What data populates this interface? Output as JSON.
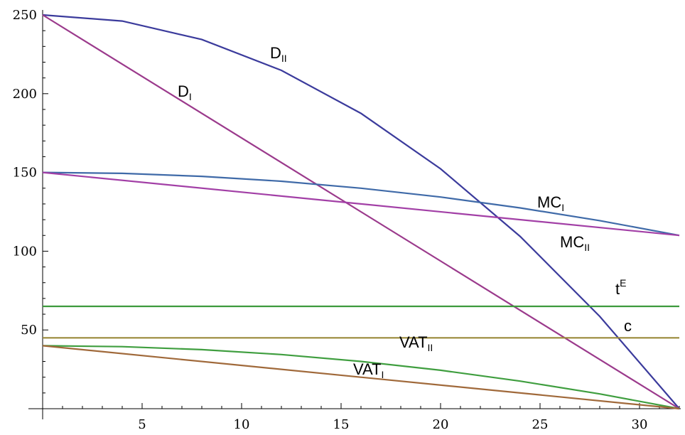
{
  "chart_data": {
    "type": "line",
    "title": "",
    "xlabel": "",
    "ylabel": "",
    "xlim": [
      0,
      32
    ],
    "ylim": [
      0,
      250
    ],
    "x_ticks": [
      5,
      10,
      15,
      20,
      25,
      30
    ],
    "y_ticks": [
      50,
      100,
      150,
      200,
      250
    ],
    "grid": false,
    "series": [
      {
        "id": "d2",
        "label_main": "D",
        "label_sub": "II",
        "label_sup": "",
        "color": "#3b3b9c",
        "x": [
          0,
          4,
          8,
          12,
          16,
          20,
          24,
          28,
          32
        ],
        "y": [
          250,
          246.1,
          234.4,
          214.8,
          187.5,
          152.3,
          109.4,
          58.6,
          0
        ]
      },
      {
        "id": "d1",
        "label_main": "D",
        "label_sub": "I",
        "label_sup": "",
        "color": "#9b3a8c",
        "x": [
          0,
          32
        ],
        "y": [
          250,
          0
        ]
      },
      {
        "id": "mc1",
        "label_main": "MC",
        "label_sub": "I",
        "label_sup": "",
        "color": "#3f6aa8",
        "x": [
          0,
          4,
          8,
          12,
          16,
          20,
          24,
          28,
          32
        ],
        "y": [
          150,
          149.4,
          147.5,
          144.4,
          140,
          134.4,
          127.5,
          119.4,
          110
        ]
      },
      {
        "id": "mc2",
        "label_main": "MC",
        "label_sub": "II",
        "label_sup": "",
        "color": "#a23fa6",
        "x": [
          0,
          32
        ],
        "y": [
          150,
          110
        ]
      },
      {
        "id": "te",
        "label_main": "t",
        "label_sub": "",
        "label_sup": "E",
        "color": "#3d9a3d",
        "x": [
          0,
          32
        ],
        "y": [
          65,
          65
        ]
      },
      {
        "id": "c",
        "label_main": "c",
        "label_sub": "",
        "label_sup": "",
        "color": "#9a8a3a",
        "x": [
          0,
          32
        ],
        "y": [
          45,
          45
        ]
      },
      {
        "id": "vat2",
        "label_main": "VAT",
        "label_sub": "II",
        "label_sup": "",
        "color": "#3f9e3f",
        "x": [
          0,
          4,
          8,
          12,
          16,
          20,
          24,
          28,
          32
        ],
        "y": [
          40,
          39.4,
          37.5,
          34.4,
          30,
          24.4,
          17.5,
          9.4,
          0
        ]
      },
      {
        "id": "vat1",
        "label_main": "VAT",
        "label_sub": "I",
        "label_sup": "",
        "color": "#a0693a",
        "x": [
          0,
          32
        ],
        "y": [
          40,
          0
        ]
      }
    ]
  }
}
